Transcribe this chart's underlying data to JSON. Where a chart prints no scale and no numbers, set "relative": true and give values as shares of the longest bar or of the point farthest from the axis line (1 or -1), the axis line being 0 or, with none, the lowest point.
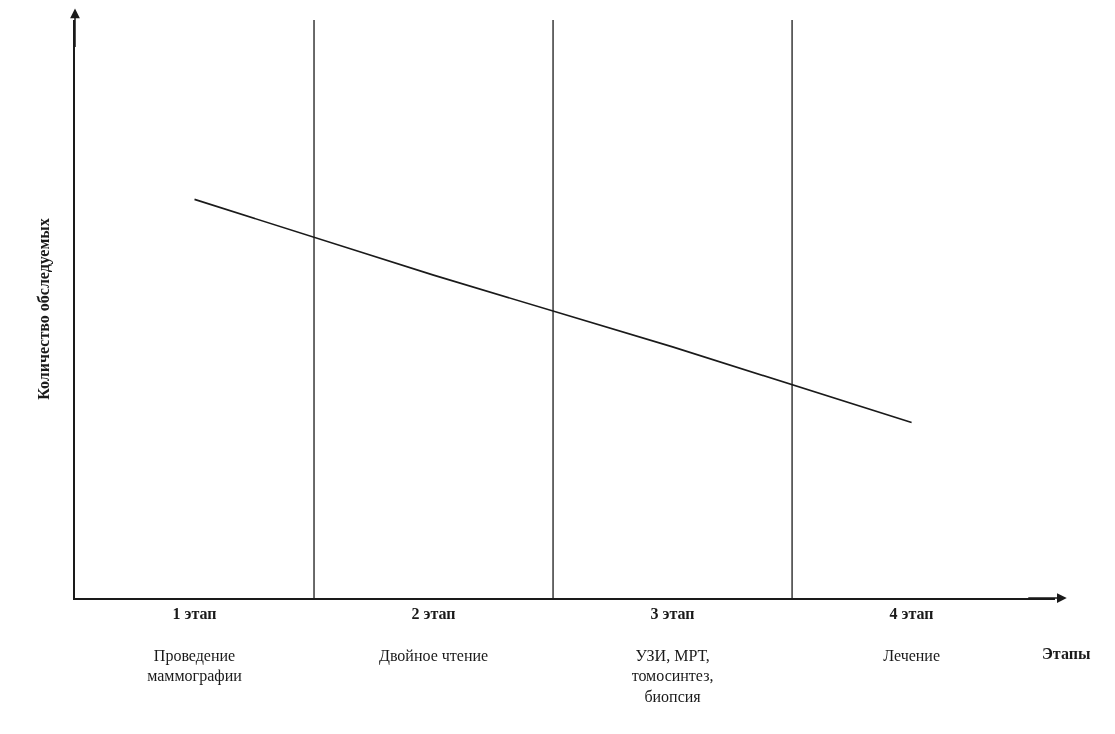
{
  "chart_data": {
    "type": "line",
    "xlabel": "Этапы",
    "ylabel": "Количество обследуемых",
    "categories": [
      "1 этап\nПроведение\nмаммографии",
      "2 этап\nДвойное чтение",
      "3 этап\nУЗИ, МРТ,\nтомосинтез,\nбиопсия",
      "4 этап\nЛечение"
    ],
    "series": [
      {
        "color": "#1a1a1a",
        "values": [
          1,
          0.81,
          0.63,
          0.44
        ]
      }
    ],
    "relative": true,
    "grid": "x",
    "marker": "none",
    "line_style": "solid"
  }
}
